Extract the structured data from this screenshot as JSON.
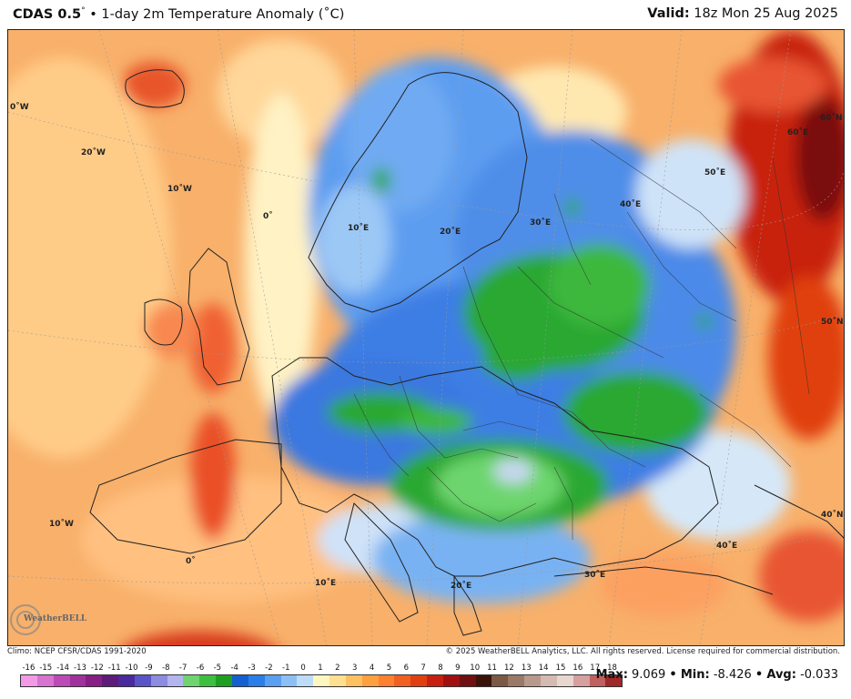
{
  "header": {
    "model": "CDAS 0.5",
    "degree": "°",
    "bullet": "•",
    "description": "1-day 2m Temperature Anomaly (˚C)",
    "valid_label": "Valid:",
    "valid_time": "18z Mon 25 Aug 2025"
  },
  "map_labels": {
    "lon_0W_edge": "0˚W",
    "lon_20W": "20˚W",
    "lon_10W_north": "10˚W",
    "lon_0_north": "0˚",
    "lon_10E_north": "10˚E",
    "lon_20E_north": "20˚E",
    "lon_30E_north": "30˚E",
    "lon_40E_north": "40˚E",
    "lon_50E_north": "50˚E",
    "lat_60N": "60˚N",
    "lon_60E": "60˚E",
    "lat_50N": "50˚N",
    "lat_40N": "40˚N",
    "lon_40E_south": "40˚E",
    "lon_30E_south": "30˚E",
    "lon_20E_south": "20˚E",
    "lon_10E_south": "10˚E",
    "lon_0_south": "0˚",
    "lon_10W_south": "10˚W"
  },
  "footer": {
    "climo": "Climo: NCEP CFSR/CDAS 1991-2020",
    "copyright": "© 2025 WeatherBELL Analytics, LLC. All rights reserved. License required for commercial distribution."
  },
  "logo": {
    "text": "WeatherBELL"
  },
  "colorbar": {
    "labels": [
      "-16",
      "-15",
      "-14",
      "-13",
      "-12",
      "-11",
      "-10",
      "-9",
      "-8",
      "-7",
      "-6",
      "-5",
      "-4",
      "-3",
      "-2",
      "-1",
      "0",
      "1",
      "2",
      "3",
      "4",
      "5",
      "6",
      "7",
      "8",
      "9",
      "10",
      "11",
      "12",
      "13",
      "14",
      "15",
      "16",
      "17",
      "18"
    ],
    "colors": [
      "#f29ae6",
      "#d873cf",
      "#bd4bb5",
      "#a1319d",
      "#871f85",
      "#5f1b7a",
      "#4a2a9c",
      "#5a55c7",
      "#8c8ce0",
      "#b4b4ee",
      "#6fd36f",
      "#3fbf3f",
      "#1f9f1f",
      "#1560d0",
      "#2a7ee8",
      "#5aa0f0",
      "#8cc0f5",
      "#bcdcf8",
      "#fff7c0",
      "#ffe090",
      "#ffc060",
      "#ffa040",
      "#ff8030",
      "#f06020",
      "#e04010",
      "#c82010",
      "#a01010",
      "#701010",
      "#3a1208",
      "#7a5a44",
      "#9a7a66",
      "#b79a8c",
      "#d4bab0",
      "#e8d6d0",
      "#d7a0a0",
      "#c06060",
      "#a02828"
    ]
  },
  "stats": {
    "max_label": "Max:",
    "max_value": "9.069",
    "min_label": "Min:",
    "min_value": "-8.426",
    "avg_label": "Avg:",
    "avg_value": "-0.033",
    "sep": "•"
  }
}
